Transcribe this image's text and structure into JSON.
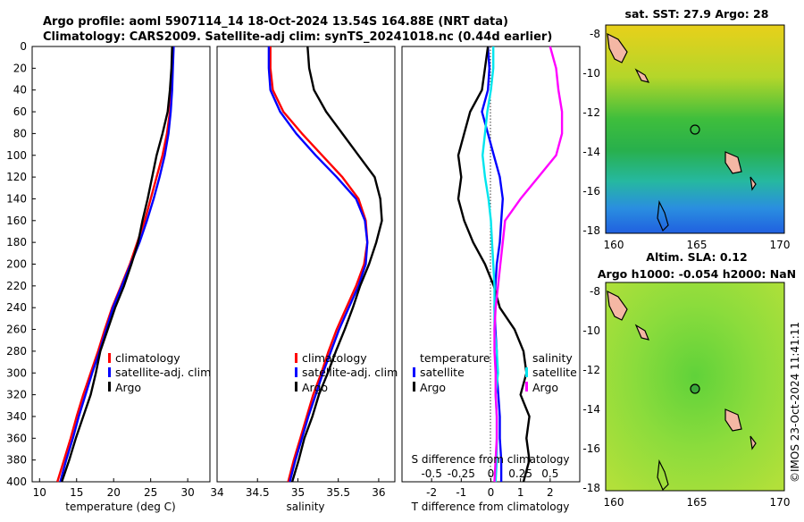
{
  "header": {
    "line1": "Argo profile: aoml 5907114_14 18-Oct-2024 13.54S 164.88E (NRT data)",
    "line2": "Climatology: CARS2009. Satellite-adj clim: synTS_20241018.nc (0.44d earlier)"
  },
  "colors": {
    "climatology": "#ff0000",
    "satellite": "#0000ff",
    "argo": "#000000",
    "sat_salinity": "#00e5ee",
    "argo_salinity": "#ff00ff"
  },
  "chart_data": [
    {
      "id": "temperature",
      "type": "line",
      "xlabel": "temperature (deg C)",
      "xlim": [
        9,
        33
      ],
      "ylim": [
        400,
        0
      ],
      "xticks": [
        10,
        15,
        20,
        25,
        30
      ],
      "yticks": [
        0,
        20,
        40,
        60,
        80,
        100,
        120,
        140,
        160,
        180,
        200,
        220,
        240,
        260,
        280,
        300,
        320,
        340,
        360,
        380,
        400
      ],
      "legend": [
        "climatology",
        "satellite-adj. clim",
        "Argo"
      ],
      "series": [
        {
          "name": "climatology",
          "color": "#ff0000",
          "depth": [
            0,
            20,
            40,
            60,
            80,
            100,
            120,
            140,
            160,
            180,
            200,
            220,
            240,
            260,
            280,
            300,
            320,
            340,
            360,
            380,
            400
          ],
          "values": [
            27.9,
            27.9,
            27.8,
            27.6,
            27.2,
            26.6,
            25.8,
            25.0,
            24.2,
            23.2,
            22.2,
            21.0,
            19.8,
            18.8,
            17.9,
            16.9,
            15.9,
            15.0,
            14.2,
            13.3,
            12.4
          ]
        },
        {
          "name": "satellite-adj. clim",
          "color": "#0000ff",
          "depth": [
            0,
            20,
            40,
            60,
            80,
            100,
            120,
            140,
            160,
            180,
            200,
            220,
            240,
            260,
            280,
            300,
            320,
            340,
            360,
            380,
            400
          ],
          "values": [
            28.1,
            28.0,
            27.9,
            27.7,
            27.4,
            26.9,
            26.2,
            25.4,
            24.5,
            23.5,
            22.3,
            21.1,
            19.9,
            19.0,
            18.1,
            17.1,
            16.2,
            15.3,
            14.5,
            13.6,
            12.8
          ]
        },
        {
          "name": "Argo",
          "color": "#000000",
          "depth": [
            0,
            20,
            40,
            60,
            80,
            100,
            120,
            140,
            160,
            180,
            200,
            220,
            240,
            260,
            280,
            300,
            320,
            340,
            360,
            380,
            400
          ],
          "values": [
            27.9,
            27.8,
            27.6,
            27.3,
            26.6,
            25.8,
            25.2,
            24.6,
            23.9,
            23.3,
            22.4,
            21.4,
            20.2,
            19.2,
            18.2,
            17.6,
            16.9,
            15.9,
            14.9,
            14.0,
            13.0
          ]
        }
      ]
    },
    {
      "id": "salinity",
      "type": "line",
      "xlabel": "salinity",
      "xlim": [
        34.0,
        36.2
      ],
      "ylim": [
        400,
        0
      ],
      "xticks": [
        34,
        34.5,
        35,
        35.5,
        36
      ],
      "legend": [
        "climatology",
        "satellite-adj. clim",
        "Argo"
      ],
      "series": [
        {
          "name": "climatology",
          "color": "#ff0000",
          "depth": [
            0,
            20,
            40,
            60,
            80,
            100,
            120,
            140,
            160,
            180,
            200,
            220,
            240,
            260,
            280,
            300,
            320,
            340,
            360,
            380,
            400
          ],
          "values": [
            34.66,
            34.66,
            34.69,
            34.82,
            35.05,
            35.3,
            35.55,
            35.75,
            35.84,
            35.86,
            35.82,
            35.72,
            35.6,
            35.48,
            35.38,
            35.29,
            35.19,
            35.11,
            35.03,
            34.95,
            34.88
          ]
        },
        {
          "name": "satellite-adj. clim",
          "color": "#0000ff",
          "depth": [
            0,
            20,
            40,
            60,
            80,
            100,
            120,
            140,
            160,
            180,
            200,
            220,
            240,
            260,
            280,
            300,
            320,
            340,
            360,
            380,
            400
          ],
          "values": [
            34.64,
            34.64,
            34.66,
            34.78,
            34.98,
            35.22,
            35.48,
            35.72,
            35.83,
            35.86,
            35.84,
            35.75,
            35.63,
            35.51,
            35.41,
            35.31,
            35.22,
            35.13,
            35.05,
            34.97,
            34.9
          ]
        },
        {
          "name": "Argo",
          "color": "#000000",
          "depth": [
            0,
            20,
            40,
            60,
            80,
            100,
            120,
            140,
            160,
            180,
            200,
            220,
            240,
            260,
            280,
            300,
            320,
            340,
            360,
            380,
            400
          ],
          "values": [
            35.12,
            35.14,
            35.2,
            35.35,
            35.55,
            35.75,
            35.95,
            36.02,
            36.04,
            35.97,
            35.88,
            35.77,
            35.68,
            35.58,
            35.47,
            35.37,
            35.26,
            35.18,
            35.08,
            35.01,
            34.93
          ]
        }
      ]
    },
    {
      "id": "difference",
      "type": "line",
      "xlabel": "T difference from climatology",
      "xlabel_top": "S difference from climatology",
      "xlim": [
        -3,
        3
      ],
      "ylim": [
        400,
        0
      ],
      "xticks": [
        -2,
        -1,
        0,
        1,
        2
      ],
      "xticks_top": [
        "-0.5",
        "-0.25",
        "0",
        "0.25",
        "0.5"
      ],
      "legend_left": [
        "temperature",
        "satellite",
        "Argo"
      ],
      "legend_right": [
        "salinity",
        "satellite",
        "Argo"
      ],
      "series": [
        {
          "name": "T satellite",
          "color": "#0000ff",
          "depth": [
            0,
            20,
            40,
            60,
            80,
            100,
            120,
            140,
            160,
            180,
            200,
            220,
            240,
            260,
            280,
            300,
            320,
            340,
            360,
            380,
            400
          ],
          "values": [
            -0.1,
            -0.05,
            -0.1,
            -0.3,
            -0.1,
            0.1,
            0.3,
            0.4,
            0.35,
            0.3,
            0.2,
            0.15,
            0.12,
            0.15,
            0.2,
            0.2,
            0.25,
            0.3,
            0.3,
            0.35,
            0.35
          ]
        },
        {
          "name": "T Argo",
          "color": "#000000",
          "depth": [
            0,
            20,
            40,
            60,
            80,
            100,
            120,
            140,
            160,
            180,
            200,
            220,
            240,
            260,
            280,
            300,
            320,
            340,
            360,
            380,
            400
          ],
          "values": [
            -0.1,
            -0.2,
            -0.3,
            -0.7,
            -0.9,
            -1.1,
            -1.0,
            -1.1,
            -0.9,
            -0.6,
            -0.2,
            0.1,
            0.3,
            0.8,
            1.1,
            1.2,
            1.0,
            1.3,
            1.2,
            1.3,
            1.1
          ]
        },
        {
          "name": "S satellite",
          "color": "#00e5ee",
          "depth": [
            0,
            20,
            40,
            60,
            80,
            100,
            120,
            140,
            160,
            180,
            200,
            220,
            240,
            260,
            280,
            300,
            320,
            340,
            360,
            380,
            400
          ],
          "values": [
            0.02,
            0.02,
            0.0,
            -0.03,
            -0.05,
            -0.07,
            -0.05,
            -0.02,
            0.0,
            0.01,
            0.02,
            0.03,
            0.03,
            0.03,
            0.05,
            0.06,
            0.04,
            0.05,
            0.05,
            0.05,
            0.04
          ]
        },
        {
          "name": "S Argo",
          "color": "#ff00ff",
          "depth": [
            0,
            20,
            40,
            60,
            80,
            100,
            120,
            140,
            160,
            180,
            200,
            220,
            240,
            260,
            280,
            300,
            320,
            340,
            360,
            380,
            400
          ],
          "values": [
            0.5,
            0.55,
            0.57,
            0.6,
            0.6,
            0.55,
            0.4,
            0.25,
            0.12,
            0.1,
            0.08,
            0.06,
            0.04,
            0.03,
            0.03,
            0.04,
            0.04,
            0.05,
            0.05,
            0.04,
            0.03
          ]
        }
      ]
    }
  ],
  "maps": {
    "sst": {
      "title": "sat. SST: 27.9 Argo: 28",
      "xticks": [
        "160",
        "165",
        "170"
      ],
      "yticks": [
        "-8",
        "-10",
        "-12",
        "-14",
        "-16",
        "-18"
      ]
    },
    "sla": {
      "title_line1": "Altim. SLA: 0.12",
      "title_line2": "Argo h1000: -0.054 h2000: NaN",
      "xticks": [
        "160",
        "165",
        "170"
      ],
      "yticks": [
        "-8",
        "-10",
        "-12",
        "-14",
        "-16",
        "-18"
      ]
    }
  },
  "footer": {
    "credit": "©IMOS 23-Oct-2024 11:41:11"
  }
}
